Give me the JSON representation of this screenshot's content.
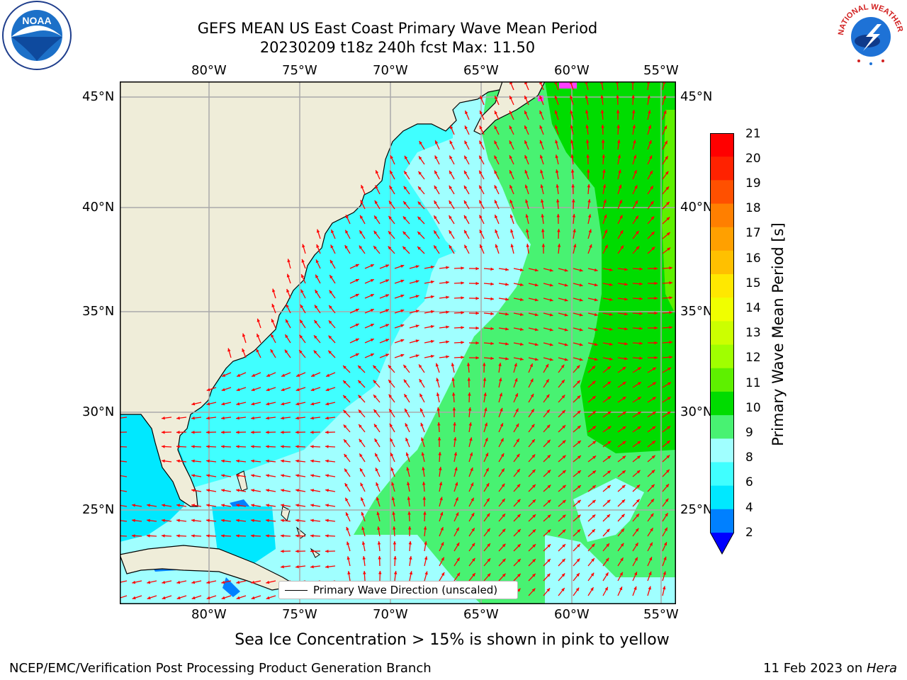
{
  "header": {
    "title_line1": "GEFS MEAN US East Coast Primary Wave Mean Period",
    "title_line2": "20230209 t18z 240h fcst   Max: 11.50"
  },
  "logos": {
    "left": "NOAA",
    "left_ring_text": "NATIONAL OCEANIC AND ATMOSPHERIC ADMINISTRATION · U.S. DEPARTMENT OF COMMERCE",
    "right_ring_text": "NATIONAL WEATHER SERVICE"
  },
  "map": {
    "lon_ticks": [
      "80°W",
      "75°W",
      "70°W",
      "65°W",
      "60°W",
      "55°W"
    ],
    "lat_ticks_left": [
      "45°N",
      "40°N",
      "35°N",
      "30°N",
      "25°N"
    ],
    "lat_ticks_right": [
      "45°N",
      "40°N",
      "35°N",
      "30°N",
      "25°N"
    ],
    "legend_label": "Primary Wave Direction (unscaled)",
    "land_color": "#efedd9",
    "arrow_color": "#ff0000"
  },
  "colorbar": {
    "label": "Primary Wave Mean Period [s]",
    "tick_labels": [
      "21",
      "20",
      "19",
      "18",
      "17",
      "16",
      "15",
      "14",
      "13",
      "12",
      "11",
      "10",
      "9",
      "8",
      "6",
      "4",
      "2"
    ],
    "level_colors": [
      "#ff0000",
      "#ff2200",
      "#ff5000",
      "#ff7f00",
      "#ffa000",
      "#ffc000",
      "#ffe800",
      "#f0ff00",
      "#ccff00",
      "#a0ff00",
      "#5ef000",
      "#00dc00",
      "#48f272",
      "#a0ffff",
      "#40ffff",
      "#00e8ff",
      "#0080ff",
      "#0000ff"
    ]
  },
  "footer": {
    "subtitle": "Sea Ice Concentration > 15% is shown in pink to yellow",
    "left": "NCEP/EMC/Verification Post Processing Product Generation Branch",
    "date": "11 Feb 2023 on ",
    "host": "Hera"
  }
}
